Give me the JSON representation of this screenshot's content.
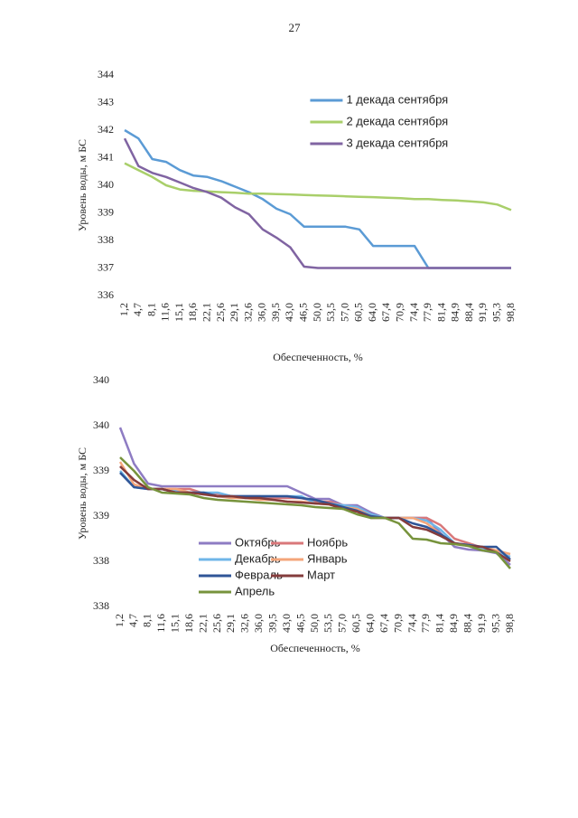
{
  "page_number": "27",
  "chart_data": [
    {
      "type": "line",
      "y_label": "Уровень воды, м БС",
      "x_label": "Обеспеченность, %",
      "categories": [
        "1,2",
        "4,7",
        "8,1",
        "11,6",
        "15,1",
        "18,6",
        "22,1",
        "25,6",
        "29,1",
        "32,6",
        "36,0",
        "39,5",
        "43,0",
        "46,5",
        "50,0",
        "53,5",
        "57,0",
        "60,5",
        "64,0",
        "67,4",
        "70,9",
        "74,4",
        "77,9",
        "81,4",
        "84,9",
        "88,4",
        "91,9",
        "95,3",
        "98,8"
      ],
      "series": [
        {
          "name": "1 декада сентября",
          "color": "#5b9bd5",
          "values": [
            342.0,
            341.7,
            340.95,
            340.85,
            340.55,
            340.35,
            340.3,
            340.15,
            339.95,
            339.75,
            339.5,
            339.15,
            338.95,
            338.5,
            338.5,
            338.5,
            338.5,
            338.4,
            337.8,
            337.8,
            337.8,
            337.8,
            337.0,
            337.0,
            337.0,
            337.0,
            337.0,
            337.0,
            337.0
          ]
        },
        {
          "name": "2 декада сентября",
          "color": "#a9cf6a",
          "values": [
            340.8,
            340.55,
            340.3,
            340.0,
            339.85,
            339.8,
            339.78,
            339.75,
            339.73,
            339.7,
            339.7,
            339.68,
            339.67,
            339.65,
            339.63,
            339.62,
            339.6,
            339.58,
            339.57,
            339.55,
            339.53,
            339.5,
            339.5,
            339.47,
            339.45,
            339.42,
            339.38,
            339.3,
            339.1
          ]
        },
        {
          "name": "3 декада сентября",
          "color": "#8064a2",
          "values": [
            341.7,
            340.7,
            340.45,
            340.3,
            340.1,
            339.9,
            339.75,
            339.55,
            339.2,
            338.95,
            338.4,
            338.1,
            337.75,
            337.05,
            337.0,
            337.0,
            337.0,
            337.0,
            337.0,
            337.0,
            337.0,
            337.0,
            337.0,
            337.0,
            337.0,
            337.0,
            337.0,
            337.0,
            337.0
          ]
        }
      ],
      "ylim": [
        336,
        344
      ],
      "yticks": [
        336,
        337,
        338,
        339,
        340,
        341,
        342,
        343,
        344
      ],
      "grid": false,
      "legend": "upper right"
    },
    {
      "type": "line",
      "y_label": "Уровень воды, м БС",
      "x_label": "Обеспеченность, %",
      "categories": [
        "1,2",
        "4,7",
        "8,1",
        "11,6",
        "15,1",
        "18,6",
        "22,1",
        "25,6",
        "29,1",
        "32,6",
        "36,0",
        "39,5",
        "43,0",
        "46,5",
        "50,0",
        "53,5",
        "57,0",
        "60,5",
        "64,0",
        "67,4",
        "70,9",
        "74,4",
        "77,9",
        "81,4",
        "84,9",
        "88,4",
        "91,9",
        "95,3",
        "98,8"
      ],
      "series": [
        {
          "name": "Октябрь",
          "color": "#8e7cc3",
          "values": [
            339.48,
            339.08,
            338.86,
            338.83,
            338.83,
            338.83,
            338.83,
            338.83,
            338.83,
            338.83,
            338.83,
            338.83,
            338.83,
            338.76,
            338.69,
            338.69,
            338.62,
            338.62,
            338.54,
            338.48,
            338.48,
            338.48,
            338.48,
            338.31,
            338.16,
            338.13,
            338.12,
            338.09,
            337.96
          ]
        },
        {
          "name": "Ноябрь",
          "color": "#d9787a",
          "values": [
            339.05,
            338.9,
            338.8,
            338.8,
            338.8,
            338.8,
            338.75,
            338.75,
            338.72,
            338.72,
            338.72,
            338.7,
            338.7,
            338.7,
            338.66,
            338.66,
            338.62,
            338.58,
            338.5,
            338.48,
            338.48,
            338.48,
            338.48,
            338.4,
            338.25,
            338.2,
            338.15,
            338.12,
            338.02
          ]
        },
        {
          "name": "Декабрь",
          "color": "#6fb6e8",
          "values": [
            339.0,
            338.82,
            338.8,
            338.8,
            338.78,
            338.76,
            338.76,
            338.76,
            338.72,
            338.72,
            338.72,
            338.72,
            338.72,
            338.72,
            338.64,
            338.64,
            338.62,
            338.6,
            338.52,
            338.48,
            338.48,
            338.48,
            338.45,
            338.35,
            338.2,
            338.18,
            338.15,
            338.1,
            338.05
          ]
        },
        {
          "name": "Январь",
          "color": "#f4a57a",
          "values": [
            339.1,
            338.85,
            338.8,
            338.8,
            338.8,
            338.76,
            338.75,
            338.72,
            338.7,
            338.7,
            338.68,
            338.68,
            338.66,
            338.66,
            338.64,
            338.63,
            338.6,
            338.58,
            338.5,
            338.48,
            338.48,
            338.48,
            338.42,
            338.3,
            338.2,
            338.18,
            338.16,
            338.12,
            338.08
          ]
        },
        {
          "name": "Февраль",
          "color": "#2f5597",
          "values": [
            338.98,
            338.82,
            338.8,
            338.8,
            338.76,
            338.76,
            338.76,
            338.72,
            338.72,
            338.72,
            338.72,
            338.72,
            338.72,
            338.7,
            338.68,
            338.64,
            338.6,
            338.56,
            338.5,
            338.48,
            338.48,
            338.42,
            338.38,
            338.3,
            338.2,
            338.18,
            338.16,
            338.16,
            338.02
          ]
        },
        {
          "name": "Март",
          "color": "#843c3c",
          "values": [
            339.05,
            338.9,
            338.8,
            338.8,
            338.76,
            338.76,
            338.74,
            338.72,
            338.72,
            338.7,
            338.7,
            338.68,
            338.66,
            338.65,
            338.64,
            338.63,
            338.58,
            338.55,
            338.48,
            338.48,
            338.48,
            338.38,
            338.35,
            338.28,
            338.2,
            338.17,
            338.16,
            338.1,
            338.0
          ]
        },
        {
          "name": "Апрель",
          "color": "#77933c",
          "values": [
            339.15,
            339.0,
            338.82,
            338.76,
            338.75,
            338.74,
            338.7,
            338.68,
            338.67,
            338.66,
            338.65,
            338.64,
            338.63,
            338.62,
            338.6,
            338.59,
            338.58,
            338.52,
            338.48,
            338.48,
            338.42,
            338.25,
            338.24,
            338.2,
            338.19,
            338.17,
            338.12,
            338.1,
            337.92
          ]
        }
      ],
      "ylim": [
        337.5,
        340
      ],
      "yticks": [
        {
          "value": 337.5,
          "label": "338"
        },
        338,
        {
          "value": 338.5,
          "label": "339"
        },
        339,
        {
          "value": 339.5,
          "label": "340"
        },
        340
      ],
      "grid": false,
      "legend": "lower left"
    }
  ]
}
